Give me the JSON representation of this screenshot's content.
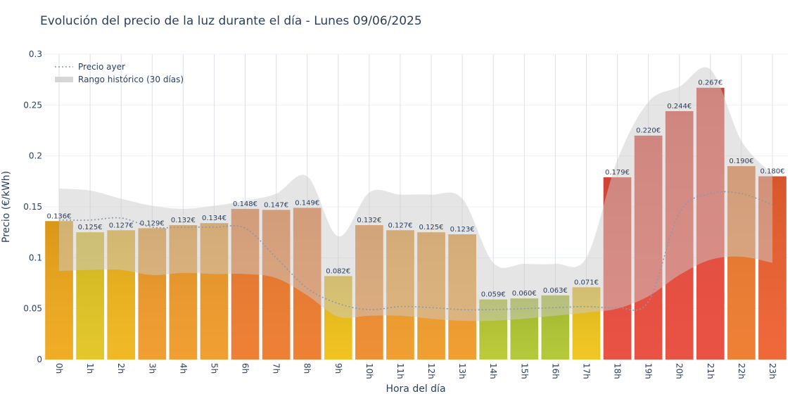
{
  "chart_data": {
    "type": "bar",
    "title": "Evolución del precio de la luz durante el día - Lunes 09/06/2025",
    "xlabel": "Hora del día",
    "ylabel": "Precio (€/kWh)",
    "ylim": [
      0,
      0.3
    ],
    "yticks": [
      0,
      0.05,
      0.1,
      0.15,
      0.2,
      0.25,
      0.3
    ],
    "ytick_labels": [
      "0",
      "0.05",
      "0.1",
      "0.15",
      "0.2",
      "0.25",
      "0.3"
    ],
    "grid": true,
    "legend_position": "top-left",
    "categories": [
      "0h",
      "1h",
      "2h",
      "3h",
      "4h",
      "5h",
      "6h",
      "7h",
      "8h",
      "9h",
      "10h",
      "11h",
      "12h",
      "13h",
      "14h",
      "15h",
      "16h",
      "17h",
      "18h",
      "19h",
      "20h",
      "21h",
      "22h",
      "23h"
    ],
    "values": [
      0.136,
      0.125,
      0.127,
      0.129,
      0.132,
      0.134,
      0.148,
      0.147,
      0.149,
      0.082,
      0.132,
      0.127,
      0.125,
      0.123,
      0.059,
      0.06,
      0.063,
      0.071,
      0.179,
      0.22,
      0.244,
      0.267,
      0.19,
      0.18
    ],
    "value_labels": [
      "0.136€",
      "0.125€",
      "0.127€",
      "0.129€",
      "0.132€",
      "0.134€",
      "0.148€",
      "0.147€",
      "0.149€",
      "0.082€",
      "0.132€",
      "0.127€",
      "0.125€",
      "0.123€",
      "0.059€",
      "0.060€",
      "0.063€",
      "0.071€",
      "0.179€",
      "0.220€",
      "0.244€",
      "0.267€",
      "0.190€",
      "0.180€"
    ],
    "bar_colors": [
      "#f0a81a",
      "#e2c421",
      "#f0b51a",
      "#f09a28",
      "#f09a28",
      "#f09a28",
      "#ee7a2c",
      "#ee7a2c",
      "#ee7a2c",
      "#f0c016",
      "#ee8a2c",
      "#f09a28",
      "#f09a28",
      "#f09a28",
      "#b8c830",
      "#b0c630",
      "#b0c630",
      "#f0c41a",
      "#e8493a",
      "#e8493a",
      "#e8493a",
      "#e8493a",
      "#ee7a2c",
      "#ee6030"
    ],
    "series": [
      {
        "name": "Precio ayer",
        "type": "line",
        "style": "dotted",
        "color": "#8a99aa",
        "values": [
          0.137,
          0.137,
          0.139,
          0.13,
          0.13,
          0.13,
          0.129,
          0.1,
          0.07,
          0.055,
          0.049,
          0.052,
          0.051,
          0.049,
          0.049,
          0.05,
          0.051,
          0.052,
          0.051,
          0.057,
          0.144,
          0.163,
          0.163,
          0.152
        ]
      },
      {
        "name": "Rango histórico (30 días)",
        "type": "band",
        "color": "#cccccc",
        "opacity": 0.5,
        "upper": [
          0.168,
          0.166,
          0.158,
          0.151,
          0.148,
          0.151,
          0.156,
          0.163,
          0.18,
          0.121,
          0.164,
          0.162,
          0.162,
          0.158,
          0.095,
          0.094,
          0.094,
          0.1,
          0.196,
          0.253,
          0.268,
          0.285,
          0.215,
          0.182
        ],
        "lower": [
          0.087,
          0.088,
          0.088,
          0.083,
          0.085,
          0.084,
          0.084,
          0.08,
          0.063,
          0.042,
          0.043,
          0.043,
          0.04,
          0.038,
          0.038,
          0.04,
          0.043,
          0.046,
          0.05,
          0.062,
          0.083,
          0.098,
          0.101,
          0.095
        ]
      }
    ]
  }
}
